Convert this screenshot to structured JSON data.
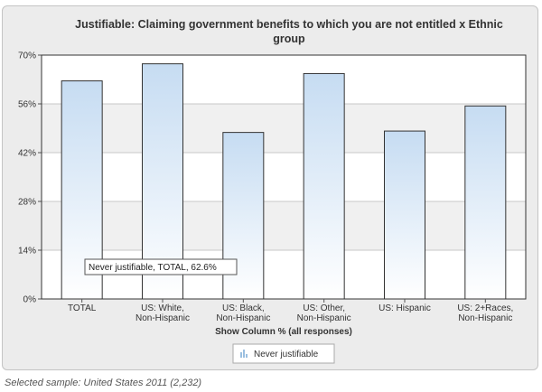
{
  "chart_data": {
    "type": "bar",
    "title_lines": [
      "Justifiable: Claiming government benefits to which you are not entitled x Ethnic",
      "group"
    ],
    "xlabel": "Show Column % (all responses)",
    "categories": [
      [
        "TOTAL"
      ],
      [
        "US: White,",
        "Non-Hispanic"
      ],
      [
        "US: Black,",
        "Non-Hispanic"
      ],
      [
        "US: Other,",
        "Non-Hispanic"
      ],
      [
        "US: Hispanic"
      ],
      [
        "US: 2+Races,",
        "Non-Hispanic"
      ]
    ],
    "series": [
      {
        "name": "Never justifiable",
        "values": [
          62.6,
          67.5,
          47.8,
          64.7,
          48.2,
          55.4
        ]
      }
    ],
    "ylim": [
      0,
      70
    ],
    "yticks": [
      "0%",
      "14%",
      "28%",
      "42%",
      "56%",
      "70%"
    ],
    "tooltip": "Never justifiable, TOTAL, 62.6%",
    "colors": {
      "bar_top": "#c6dcf2",
      "bar_bottom": "#ffffff",
      "bar_stroke": "#333333",
      "band": "#f0f0f0"
    }
  },
  "caption": "Selected sample: United States 2011 (2,232)"
}
